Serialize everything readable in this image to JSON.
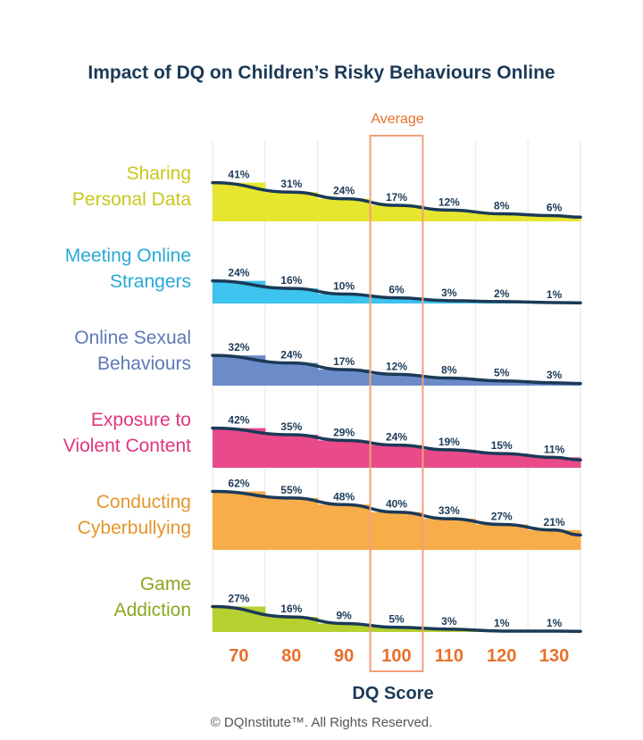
{
  "chart_data": {
    "type": "bar",
    "title": "Impact of DQ on Children’s Risky Behaviours Online",
    "xlabel": "DQ Score",
    "ylabel": "",
    "categories": [
      "70",
      "80",
      "90",
      "100",
      "110",
      "120",
      "130"
    ],
    "highlight": {
      "category": "100",
      "label": "Average"
    },
    "value_suffix": "%",
    "ylim": [
      0,
      70
    ],
    "series": [
      {
        "name": "Sharing\nPersonal Data",
        "color": "#e6e62e",
        "values": [
          41,
          31,
          24,
          17,
          12,
          8,
          6
        ]
      },
      {
        "name": "Meeting Online\nStrangers",
        "color": "#3cc3ee",
        "values": [
          24,
          16,
          10,
          6,
          3,
          2,
          1
        ]
      },
      {
        "name": "Online Sexual\nBehaviours",
        "color": "#6b8bc9",
        "values": [
          32,
          24,
          17,
          12,
          8,
          5,
          3
        ]
      },
      {
        "name": "Exposure to\nViolent Content",
        "color": "#e84a8a",
        "values": [
          42,
          35,
          29,
          24,
          19,
          15,
          11
        ]
      },
      {
        "name": "Conducting\nCyberbullying",
        "color": "#f6ad4a",
        "values": [
          62,
          55,
          48,
          40,
          33,
          27,
          21
        ]
      },
      {
        "name": "Game\nAddiction",
        "color": "#b6d12f",
        "values": [
          27,
          16,
          9,
          5,
          3,
          1,
          1
        ]
      }
    ],
    "label_colors": [
      "#c8c81e",
      "#29a9d6",
      "#5e79b4",
      "#e0357d",
      "#e3962e",
      "#8aa81f"
    ]
  },
  "footer": {
    "copyright": "© DQInstitute™. All Rights Reserved."
  },
  "colors": {
    "navy": "#1b3a57",
    "orange": "#e8702a",
    "grid": "#dfe6ea"
  }
}
